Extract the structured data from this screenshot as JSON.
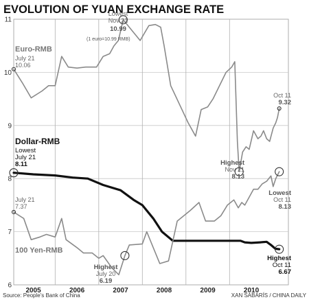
{
  "chart_data": {
    "type": "line",
    "title": "EVOLUTION OF YUAN EXCHANGE RATE",
    "ylim": [
      6,
      11
    ],
    "y_ticks": [
      "6",
      "7",
      "8",
      "9",
      "10",
      "11"
    ],
    "x_range": [
      2004.55,
      2010.85
    ],
    "x_ticks": [
      {
        "label": "2005",
        "value": 2005.0
      },
      {
        "label": "2006",
        "value": 2006.0
      },
      {
        "label": "2007",
        "value": 2007.0
      },
      {
        "label": "2008",
        "value": 2008.0
      },
      {
        "label": "2009",
        "value": 2009.0
      },
      {
        "label": "2010",
        "value": 2010.0
      }
    ],
    "year_dividers": [
      2005.5,
      2006.5,
      2007.5,
      2008.5,
      2009.5
    ],
    "grid": "horizontal",
    "series": [
      {
        "name": "Euro-RMB",
        "color": "#8a8a8a",
        "points": [
          [
            2004.55,
            10.06
          ],
          [
            2004.75,
            9.8
          ],
          [
            2004.95,
            9.52
          ],
          [
            2005.2,
            9.65
          ],
          [
            2005.35,
            9.75
          ],
          [
            2005.5,
            9.75
          ],
          [
            2005.65,
            10.3
          ],
          [
            2005.8,
            10.1
          ],
          [
            2006.0,
            10.08
          ],
          [
            2006.2,
            10.1
          ],
          [
            2006.45,
            10.1
          ],
          [
            2006.6,
            10.3
          ],
          [
            2006.75,
            10.35
          ],
          [
            2006.85,
            10.5
          ],
          [
            2006.95,
            10.6
          ],
          [
            2007.06,
            10.99
          ],
          [
            2007.25,
            10.8
          ],
          [
            2007.45,
            10.6
          ],
          [
            2007.65,
            10.88
          ],
          [
            2007.8,
            10.9
          ],
          [
            2007.92,
            10.85
          ],
          [
            2008.0,
            10.5
          ],
          [
            2008.15,
            9.75
          ],
          [
            2008.35,
            9.4
          ],
          [
            2008.55,
            9.05
          ],
          [
            2008.72,
            8.8
          ],
          [
            2008.85,
            9.3
          ],
          [
            2009.0,
            9.35
          ],
          [
            2009.12,
            9.5
          ],
          [
            2009.3,
            9.8
          ],
          [
            2009.42,
            10.0
          ],
          [
            2009.55,
            10.1
          ],
          [
            2009.62,
            10.2
          ],
          [
            2009.68,
            8.7
          ],
          [
            2009.72,
            8.13
          ],
          [
            2009.8,
            8.5
          ],
          [
            2009.88,
            8.6
          ],
          [
            2009.95,
            8.55
          ],
          [
            2010.05,
            8.9
          ],
          [
            2010.15,
            8.75
          ],
          [
            2010.22,
            8.8
          ],
          [
            2010.28,
            8.9
          ],
          [
            2010.35,
            8.75
          ],
          [
            2010.42,
            8.7
          ],
          [
            2010.5,
            8.95
          ],
          [
            2010.56,
            9.05
          ],
          [
            2010.6,
            9.15
          ],
          [
            2010.64,
            9.32
          ]
        ]
      },
      {
        "name": "Dollar-RMB",
        "color": "#111111",
        "points": [
          [
            2004.55,
            8.11
          ],
          [
            2005.0,
            8.08
          ],
          [
            2005.5,
            8.06
          ],
          [
            2005.9,
            8.02
          ],
          [
            2006.25,
            8.0
          ],
          [
            2006.6,
            7.88
          ],
          [
            2007.0,
            7.78
          ],
          [
            2007.3,
            7.6
          ],
          [
            2007.5,
            7.5
          ],
          [
            2007.75,
            7.25
          ],
          [
            2007.95,
            7.0
          ],
          [
            2008.2,
            6.83
          ],
          [
            2008.5,
            6.83
          ],
          [
            2009.0,
            6.83
          ],
          [
            2009.5,
            6.83
          ],
          [
            2009.75,
            6.83
          ],
          [
            2009.85,
            6.8
          ],
          [
            2010.0,
            6.79
          ],
          [
            2010.2,
            6.8
          ],
          [
            2010.35,
            6.81
          ],
          [
            2010.45,
            6.75
          ],
          [
            2010.55,
            6.68
          ],
          [
            2010.64,
            6.67
          ]
        ]
      },
      {
        "name": "100 Yen-RMB",
        "color": "#8a8a8a",
        "points": [
          [
            2004.55,
            7.37
          ],
          [
            2004.78,
            7.25
          ],
          [
            2004.95,
            6.85
          ],
          [
            2005.15,
            6.9
          ],
          [
            2005.3,
            6.95
          ],
          [
            2005.5,
            6.9
          ],
          [
            2005.65,
            7.25
          ],
          [
            2005.75,
            6.85
          ],
          [
            2006.0,
            6.7
          ],
          [
            2006.15,
            6.6
          ],
          [
            2006.35,
            6.6
          ],
          [
            2006.5,
            6.5
          ],
          [
            2006.6,
            6.55
          ],
          [
            2006.8,
            6.32
          ],
          [
            2006.96,
            6.19
          ],
          [
            2007.1,
            6.55
          ],
          [
            2007.2,
            6.75
          ],
          [
            2007.5,
            6.77
          ],
          [
            2007.6,
            7.0
          ],
          [
            2007.75,
            6.7
          ],
          [
            2007.9,
            6.4
          ],
          [
            2008.1,
            6.45
          ],
          [
            2008.3,
            7.2
          ],
          [
            2008.6,
            7.4
          ],
          [
            2008.8,
            7.55
          ],
          [
            2008.95,
            7.2
          ],
          [
            2009.15,
            7.2
          ],
          [
            2009.3,
            7.3
          ],
          [
            2009.45,
            7.5
          ],
          [
            2009.6,
            7.6
          ],
          [
            2009.7,
            7.45
          ],
          [
            2009.78,
            7.55
          ],
          [
            2009.85,
            7.5
          ],
          [
            2009.95,
            7.65
          ],
          [
            2010.05,
            7.8
          ],
          [
            2010.15,
            7.8
          ],
          [
            2010.25,
            7.9
          ],
          [
            2010.35,
            7.95
          ],
          [
            2010.45,
            8.05
          ],
          [
            2010.5,
            7.85
          ],
          [
            2010.56,
            8.0
          ],
          [
            2010.64,
            8.13
          ]
        ]
      }
    ],
    "series_labels": {
      "euro": "Euro-RMB",
      "dollar": "Dollar-RMB",
      "yen": "100 Yen-RMB"
    },
    "annotations": {
      "euro_start": {
        "line1": "July 21",
        "line2": "10.06"
      },
      "euro_lowest": {
        "line1": "Lowest",
        "line2": "Nov 21",
        "line3": "10.99",
        "note": "(1 euro=10.99 RMB)"
      },
      "euro_end": {
        "line1": "Oct 11",
        "line2": "9.32"
      },
      "euro_highest": {
        "line1": "Highest",
        "line2": "Nov 21",
        "line3": "8.13"
      },
      "dollar_start": {
        "line1": "Lowest",
        "line2": "July 21",
        "line3": "8.11"
      },
      "dollar_end": {
        "line1": "Highest",
        "line2": "Oct 11",
        "line3": "6.67"
      },
      "yen_start": {
        "line1": "July 21",
        "line2": "7.37"
      },
      "yen_highest": {
        "line1": "Highest",
        "line2": "July 20",
        "line3": "6.19"
      },
      "yen_end": {
        "line1": "Lowest",
        "line2": "Oct 11",
        "line3": "8.13"
      }
    },
    "source": "Source: People's Bank of China",
    "credit": "XAN SABARÍS / CHINA DAILY"
  }
}
